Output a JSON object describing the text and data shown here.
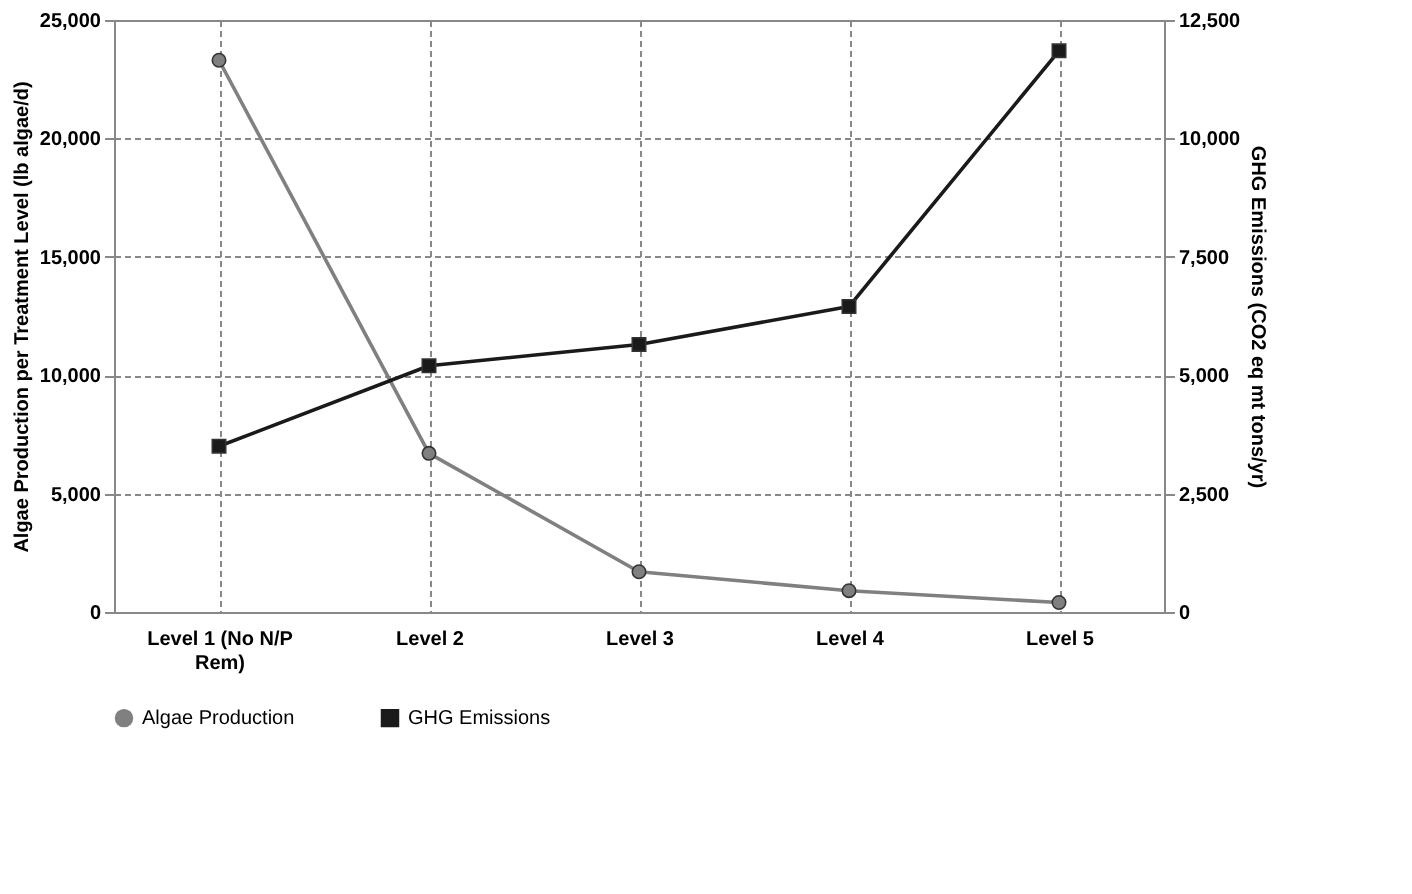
{
  "chart_data": {
    "type": "line",
    "categories": [
      "Level 1 (No N/P Rem)",
      "Level 2",
      "Level 3",
      "Level 4",
      "Level 5"
    ],
    "ylabel": "Algae Production per Treatment Level (lb algae/d)",
    "y2label": "GHG Emissions (CO2 eq mt tons/yr)",
    "ylim": [
      0,
      25000
    ],
    "yticks": [
      0,
      {
        "value": 5000,
        "label": "5,000"
      },
      {
        "value": 10000,
        "label": "10,000"
      },
      {
        "value": 15000,
        "label": "15,000"
      },
      {
        "value": 20000,
        "label": "20,000"
      },
      {
        "value": 25000,
        "label": "25,000"
      }
    ],
    "y2lim": [
      0,
      12500
    ],
    "y2ticks": [
      0,
      {
        "value": 2500,
        "label": "2,500"
      },
      {
        "value": 5000,
        "label": "5,000"
      },
      {
        "value": 7500,
        "label": "7,500"
      },
      {
        "value": 10000,
        "label": "10,000"
      },
      {
        "value": 12500,
        "label": "12,500"
      }
    ],
    "series": [
      {
        "name": "Algae Production",
        "color": "#808080",
        "marker": "circle",
        "values": [
          23300,
          6700,
          1700,
          900,
          400
        ]
      },
      {
        "name": "GHG Emissions",
        "color": "#1a1a1a",
        "marker": "square",
        "axis": "y2",
        "values": [
          3500,
          5200,
          5650,
          6450,
          11850
        ]
      }
    ],
    "grid": true,
    "legend": "bottom",
    "line_style": "solid"
  }
}
